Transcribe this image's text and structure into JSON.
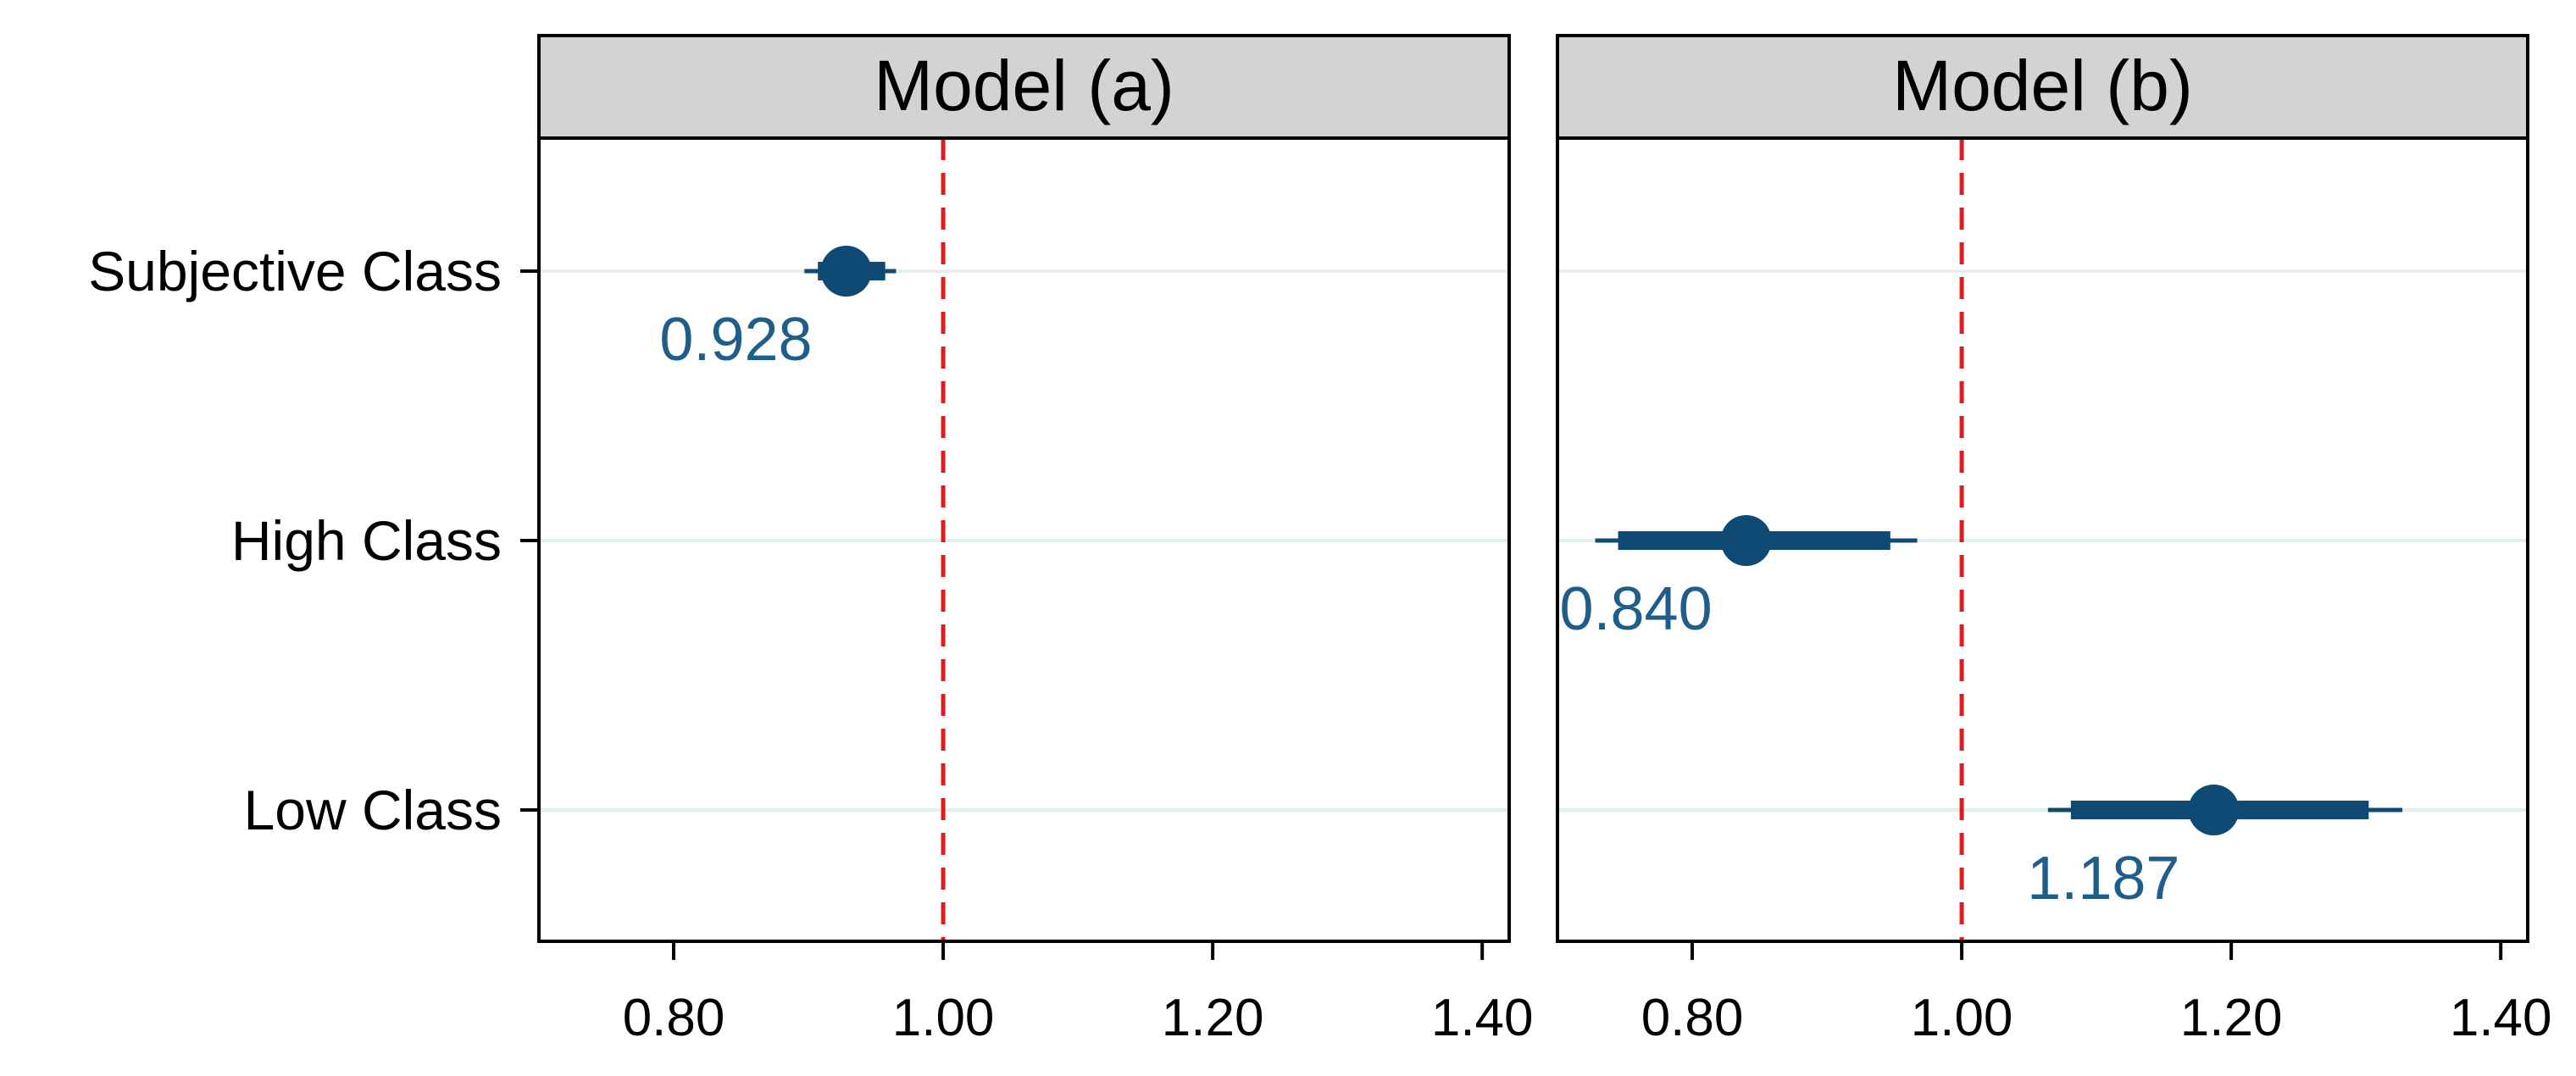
{
  "chart_data": {
    "type": "scatter",
    "panels": [
      {
        "title": "Model (a)",
        "points": [
          {
            "row": "Subjective Class",
            "estimate": 0.928,
            "label": "0.928",
            "ci90": [
              0.907,
              0.957
            ],
            "ci95": [
              0.897,
              0.965
            ]
          }
        ]
      },
      {
        "title": "Model (b)",
        "points": [
          {
            "row": "High Class",
            "estimate": 0.84,
            "label": "0.840",
            "ci90": [
              0.745,
              0.947
            ],
            "ci95": [
              0.728,
              0.967
            ]
          },
          {
            "row": "Low Class",
            "estimate": 1.187,
            "label": "1.187",
            "ci90": [
              1.081,
              1.302
            ],
            "ci95": [
              1.064,
              1.327
            ]
          }
        ]
      }
    ],
    "rows": [
      "Subjective Class",
      "High Class",
      "Low Class"
    ],
    "xlim": [
      0.7,
      1.42
    ],
    "xticks": [
      0.8,
      1.0,
      1.2,
      1.4
    ],
    "xtick_labels": [
      "0.80",
      "1.00",
      "1.20",
      "1.40"
    ],
    "reference_line": 1.0,
    "grid": "horizontal",
    "colors": {
      "marker": "#0f4a75",
      "value_label": "#1f5d8a",
      "reference_line": "#e31a1c",
      "strip": "#d3d3d3",
      "gridline": "#e3eeee"
    }
  }
}
